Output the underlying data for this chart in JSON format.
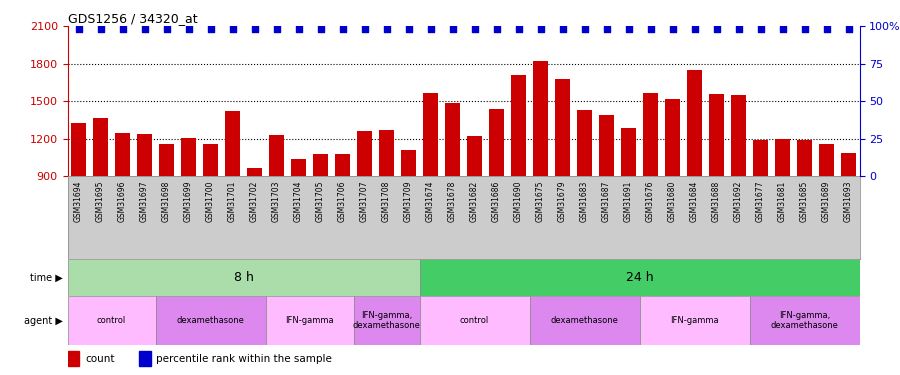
{
  "title": "GDS1256 / 34320_at",
  "bar_color": "#cc0000",
  "blue_dot_color": "#0000cc",
  "categories": [
    "GSM31694",
    "GSM31695",
    "GSM31696",
    "GSM31697",
    "GSM31698",
    "GSM31699",
    "GSM31700",
    "GSM31701",
    "GSM31702",
    "GSM31703",
    "GSM31704",
    "GSM31705",
    "GSM31706",
    "GSM31707",
    "GSM31708",
    "GSM31709",
    "GSM31674",
    "GSM31678",
    "GSM31682",
    "GSM31686",
    "GSM31690",
    "GSM31675",
    "GSM31679",
    "GSM31683",
    "GSM31687",
    "GSM31691",
    "GSM31676",
    "GSM31680",
    "GSM31684",
    "GSM31688",
    "GSM31692",
    "GSM31677",
    "GSM31681",
    "GSM31685",
    "GSM31689",
    "GSM31693"
  ],
  "values": [
    1330,
    1370,
    1250,
    1240,
    1160,
    1210,
    1160,
    1420,
    970,
    1230,
    1040,
    1080,
    1080,
    1260,
    1270,
    1110,
    1570,
    1490,
    1220,
    1440,
    1710,
    1820,
    1680,
    1430,
    1390,
    1290,
    1570,
    1520,
    1750,
    1560,
    1550,
    1190,
    1200,
    1190,
    1160,
    1090
  ],
  "ylim_left": [
    900,
    2100
  ],
  "ylim_right": [
    0,
    100
  ],
  "yticks_left": [
    900,
    1200,
    1500,
    1800,
    2100
  ],
  "yticks_right": [
    0,
    25,
    50,
    75,
    100
  ],
  "grid_values": [
    1200,
    1500,
    1800
  ],
  "time_groups": [
    {
      "label": "8 h",
      "start": 0,
      "end": 16,
      "color": "#aaddaa"
    },
    {
      "label": "24 h",
      "start": 16,
      "end": 36,
      "color": "#44cc66"
    }
  ],
  "agent_groups": [
    {
      "label": "control",
      "start": 0,
      "end": 4,
      "color": "#ffbbff"
    },
    {
      "label": "dexamethasone",
      "start": 4,
      "end": 9,
      "color": "#dd88ee"
    },
    {
      "label": "IFN-gamma",
      "start": 9,
      "end": 13,
      "color": "#ffbbff"
    },
    {
      "label": "IFN-gamma,\ndexamethasone",
      "start": 13,
      "end": 16,
      "color": "#dd88ee"
    },
    {
      "label": "control",
      "start": 16,
      "end": 21,
      "color": "#ffbbff"
    },
    {
      "label": "dexamethasone",
      "start": 21,
      "end": 26,
      "color": "#dd88ee"
    },
    {
      "label": "IFN-gamma",
      "start": 26,
      "end": 31,
      "color": "#ffbbff"
    },
    {
      "label": "IFN-gamma,\ndexamethasone",
      "start": 31,
      "end": 36,
      "color": "#dd88ee"
    }
  ],
  "legend_count_color": "#cc0000",
  "legend_pct_color": "#0000cc",
  "bg_color": "#ffffff",
  "label_bg_color": "#cccccc"
}
